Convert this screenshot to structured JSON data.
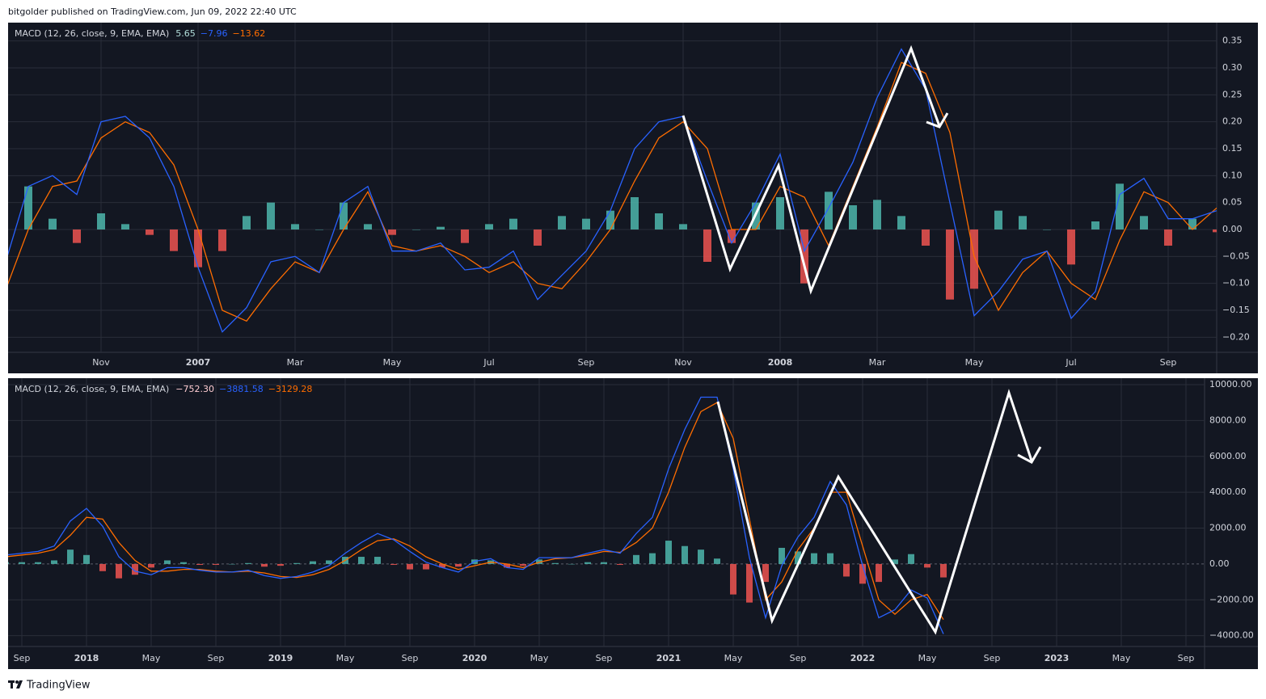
{
  "header": {
    "text": "bitgolder published on TradingView.com, Jun 09, 2022 22:40 UTC"
  },
  "footer": {
    "brand": "TradingView"
  },
  "chart_data": [
    {
      "type": "line",
      "title": "MACD (12, 26, close, 9, EMA, EMA)",
      "legend_values": [
        "5.65",
        "−7.96",
        "−13.62"
      ],
      "categories": [
        null,
        null,
        null,
        null,
        "Nov",
        null,
        null,
        null,
        "2007",
        null,
        null,
        null,
        "Mar",
        null,
        null,
        null,
        "May",
        null,
        null,
        null,
        "Jul",
        null,
        null,
        null,
        "Sep",
        null,
        null,
        null,
        "Nov",
        null,
        null,
        null,
        "2008",
        null,
        null,
        null,
        "Mar",
        null,
        null,
        null,
        "May",
        null,
        null,
        null,
        "Jul",
        null,
        null,
        null,
        "Sep",
        null,
        null
      ],
      "macd": {
        "color": "#2962ff",
        "values": [
          -0.07,
          0.08,
          0.1,
          0.065,
          0.2,
          0.21,
          0.17,
          0.08,
          -0.07,
          -0.19,
          -0.145,
          -0.06,
          -0.05,
          -0.08,
          0.05,
          0.08,
          -0.04,
          -0.04,
          -0.025,
          -0.075,
          -0.07,
          -0.04,
          -0.13,
          -0.085,
          -0.04,
          0.035,
          0.15,
          0.2,
          0.21,
          0.09,
          -0.025,
          0.05,
          0.14,
          -0.04,
          0.04,
          0.125,
          0.245,
          0.335,
          0.26,
          0.05,
          -0.16,
          -0.115,
          -0.055,
          -0.04,
          -0.165,
          -0.115,
          0.065,
          0.095,
          0.02,
          0.02,
          0.035
        ]
      },
      "signal": {
        "color": "#ff6d00",
        "values": [
          -0.12,
          0.0,
          0.08,
          0.09,
          0.17,
          0.2,
          0.18,
          0.12,
          0.0,
          -0.15,
          -0.17,
          -0.11,
          -0.06,
          -0.08,
          0.0,
          0.07,
          -0.03,
          -0.04,
          -0.03,
          -0.05,
          -0.08,
          -0.06,
          -0.1,
          -0.11,
          -0.06,
          0.0,
          0.09,
          0.17,
          0.2,
          0.15,
          0.0,
          0.0,
          0.08,
          0.06,
          -0.03,
          0.08,
          0.19,
          0.31,
          0.29,
          0.18,
          -0.05,
          -0.15,
          -0.08,
          -0.04,
          -0.1,
          -0.13,
          -0.02,
          0.07,
          0.05,
          0.0,
          0.04
        ]
      },
      "histogram": {
        "colors": [
          "#4db6ac",
          "#ef5350"
        ],
        "values": [
          0.05,
          0.08,
          0.02,
          -0.025,
          0.03,
          0.01,
          -0.01,
          -0.04,
          -0.07,
          -0.04,
          0.025,
          0.05,
          0.01,
          0.0,
          0.05,
          0.01,
          -0.01,
          0.0,
          0.005,
          -0.025,
          0.01,
          0.02,
          -0.03,
          0.025,
          0.02,
          0.035,
          0.06,
          0.03,
          0.01,
          -0.06,
          -0.025,
          0.05,
          0.06,
          -0.1,
          0.07,
          0.045,
          0.055,
          0.025,
          -0.03,
          -0.13,
          -0.11,
          0.035,
          0.025,
          0.0,
          -0.065,
          0.015,
          0.085,
          0.025,
          -0.03,
          0.02,
          -0.005
        ]
      },
      "ylim": [
        -0.228,
        0.384
      ],
      "yticks": [
        0.35,
        {
          "value": 0.3,
          "label": "0.30"
        },
        0.25,
        {
          "value": 0.2,
          "label": "0.20"
        },
        0.15,
        {
          "value": 0.1,
          "label": "0.10"
        },
        0.05,
        {
          "value": 0,
          "label": "0.00"
        },
        {
          "value": -0.05,
          "label": "−0.05"
        },
        {
          "value": -0.1,
          "label": "−0.10"
        },
        {
          "value": -0.15,
          "label": "−0.15"
        },
        {
          "value": -0.2,
          "label": "−0.20"
        }
      ],
      "grid": true
    },
    {
      "type": "line",
      "title": "MACD (12, 26, close, 9, EMA, EMA)",
      "legend_values": [
        "−752.30",
        "−3881.58",
        "−3129.28"
      ],
      "categories": [
        null,
        "Sep",
        null,
        null,
        null,
        "2018",
        null,
        null,
        null,
        "May",
        null,
        null,
        null,
        "Sep",
        null,
        null,
        null,
        "2019",
        null,
        null,
        null,
        "May",
        null,
        null,
        null,
        "Sep",
        null,
        null,
        null,
        "2020",
        null,
        null,
        null,
        "May",
        null,
        null,
        null,
        "Sep",
        null,
        null,
        null,
        "2021",
        null,
        null,
        null,
        "May",
        null,
        null,
        null,
        "Sep",
        null,
        null,
        null,
        "2022",
        null,
        null,
        null,
        "May",
        null,
        null,
        null,
        "Sep",
        null,
        null,
        null,
        "2023",
        null,
        null,
        null,
        "May",
        null,
        null,
        null,
        "Sep",
        null
      ],
      "macd": {
        "color": "#2962ff",
        "values": [
          500,
          600,
          700,
          1000,
          2400,
          3100,
          2100,
          400,
          -400,
          -600,
          -200,
          -200,
          -350,
          -450,
          -450,
          -350,
          -650,
          -800,
          -700,
          -450,
          -100,
          600,
          1200,
          1700,
          1350,
          700,
          100,
          -200,
          -450,
          150,
          300,
          -200,
          -300,
          350,
          350,
          350,
          600,
          800,
          600,
          1700,
          2600,
          5300,
          7500,
          9300,
          9300,
          5300,
          350,
          -3000,
          -100,
          1500,
          2600,
          4600,
          3300,
          -100,
          -3000,
          -2550,
          -1450,
          -1900,
          -3900,
          null,
          null,
          null,
          null,
          null,
          null,
          null,
          null,
          null,
          null,
          null,
          null,
          null,
          null,
          null,
          null
        ]
      },
      "signal": {
        "color": "#ff6d00",
        "values": [
          400,
          500,
          600,
          800,
          1600,
          2600,
          2500,
          1200,
          200,
          -400,
          -400,
          -300,
          -300,
          -400,
          -450,
          -400,
          -500,
          -700,
          -750,
          -600,
          -300,
          200,
          800,
          1300,
          1400,
          1000,
          400,
          0,
          -300,
          -100,
          100,
          0,
          -200,
          100,
          300,
          350,
          500,
          700,
          650,
          1200,
          2000,
          4000,
          6500,
          8500,
          9000,
          7000,
          2500,
          -2000,
          -1000,
          800,
          2000,
          4000,
          4000,
          1000,
          -2000,
          -2800,
          -2000,
          -1700,
          -3100,
          null,
          null,
          null,
          null,
          null,
          null,
          null,
          null,
          null,
          null,
          null,
          null,
          null,
          null,
          null,
          null
        ]
      },
      "histogram": {
        "colors": [
          "#4db6ac",
          "#ef5350"
        ],
        "values": [
          100,
          100,
          100,
          200,
          800,
          500,
          -400,
          -800,
          -600,
          -200,
          200,
          100,
          -50,
          -50,
          0,
          50,
          -150,
          -100,
          50,
          150,
          200,
          400,
          400,
          400,
          -50,
          -300,
          -300,
          -200,
          -150,
          250,
          200,
          -200,
          -100,
          250,
          50,
          0,
          100,
          100,
          -50,
          500,
          600,
          1300,
          1000,
          800,
          300,
          -1700,
          -2150,
          -1000,
          900,
          700,
          600,
          600,
          -700,
          -1100,
          -1000,
          250,
          550,
          -200,
          -750,
          null,
          null,
          null,
          null,
          null,
          null,
          null,
          null,
          null,
          null,
          null,
          null,
          null,
          null,
          null,
          null
        ]
      },
      "ylim": [
        -4600,
        10360
      ],
      "yticks": [
        {
          "value": 10000,
          "label": "10000.00"
        },
        {
          "value": 8000,
          "label": "8000.00"
        },
        {
          "value": 6000,
          "label": "6000.00"
        },
        {
          "value": 4000,
          "label": "4000.00"
        },
        {
          "value": 2000,
          "label": "2000.00"
        },
        {
          "value": 0,
          "label": "0.00"
        },
        {
          "value": -2000,
          "label": "−2000.00"
        },
        {
          "value": -4000,
          "label": "−4000.00"
        }
      ],
      "grid": true
    }
  ]
}
